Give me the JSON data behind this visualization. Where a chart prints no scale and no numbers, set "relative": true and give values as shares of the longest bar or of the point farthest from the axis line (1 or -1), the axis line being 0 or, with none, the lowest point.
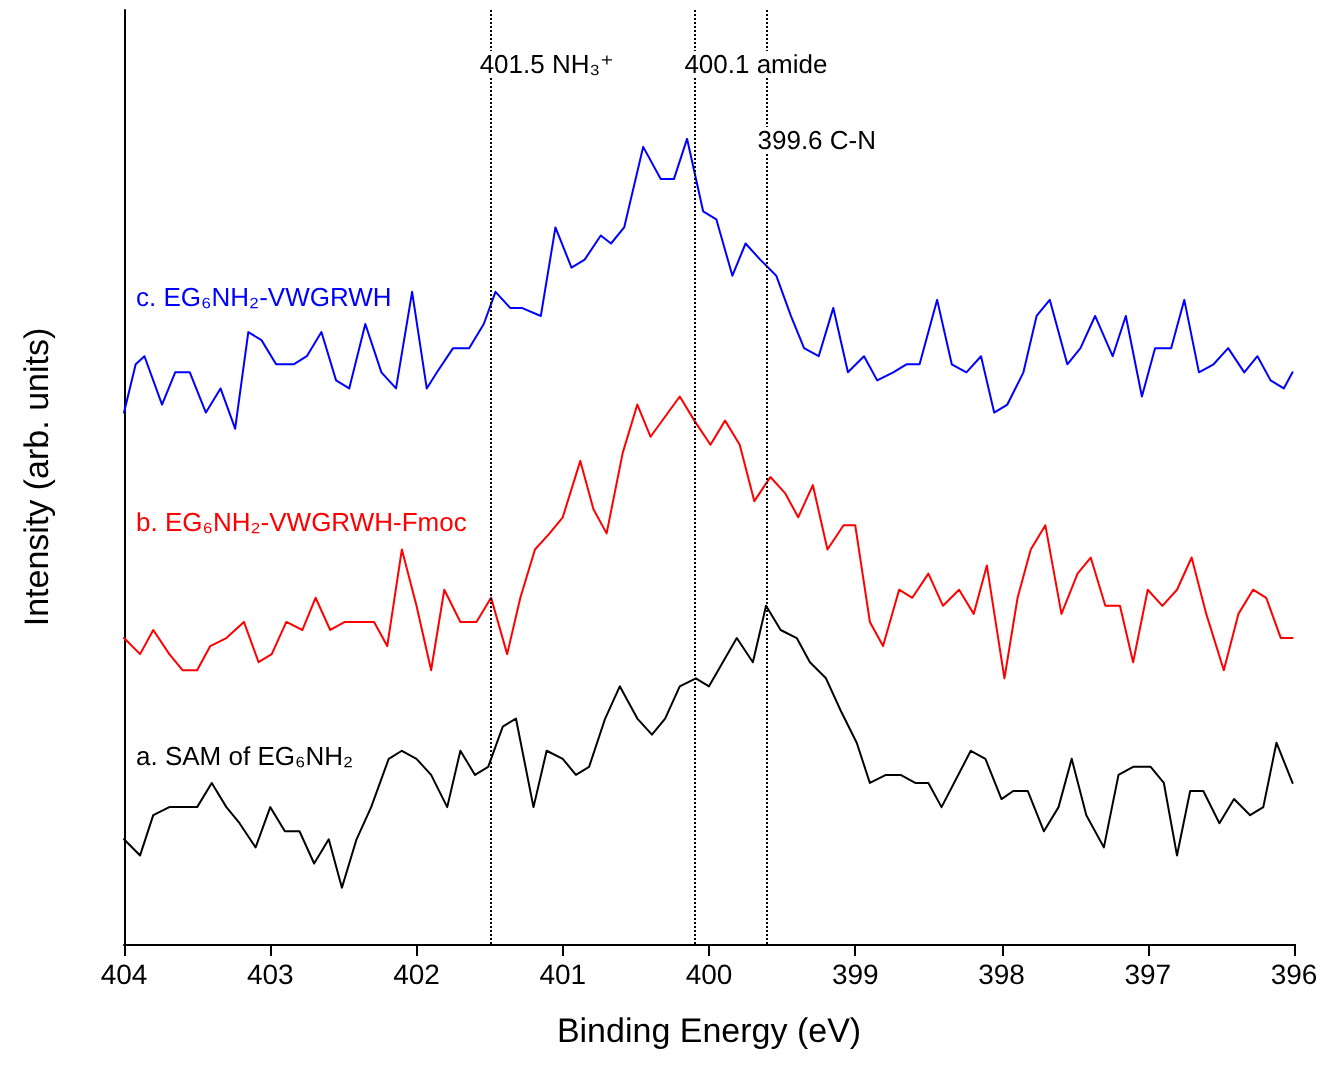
{
  "chart_data": {
    "type": "line",
    "relative": true,
    "xlabel": "Binding Energy (eV)",
    "ylabel": "Intensity (arb. units)",
    "xlim": [
      404,
      396
    ],
    "xticks": [
      404,
      403,
      402,
      401,
      400,
      399,
      398,
      397,
      396
    ],
    "grid": false,
    "legend": false,
    "marker": "none",
    "line_style": "solid",
    "series": [
      {
        "name": "c. EG₆NH₂-VWGRWH",
        "color": "#0000ff",
        "x": [
          404.0,
          403.92,
          403.86,
          403.74,
          403.65,
          403.55,
          403.44,
          403.34,
          403.24,
          403.15,
          403.06,
          402.96,
          402.84,
          402.75,
          402.65,
          402.55,
          402.46,
          402.35,
          402.24,
          402.14,
          402.03,
          401.93,
          401.86,
          401.75,
          401.64,
          401.54,
          401.46,
          401.36,
          401.28,
          401.15,
          401.05,
          400.94,
          400.85,
          400.74,
          400.67,
          400.58,
          400.45,
          400.33,
          400.24,
          400.15,
          400.04,
          399.95,
          399.84,
          399.75,
          399.65,
          399.54,
          399.44,
          399.35,
          399.25,
          399.15,
          399.05,
          398.94,
          398.85,
          398.74,
          398.65,
          398.56,
          398.44,
          398.34,
          398.24,
          398.14,
          398.05,
          397.96,
          397.85,
          397.76,
          397.67,
          397.55,
          397.46,
          397.36,
          397.24,
          397.15,
          397.04,
          396.95,
          396.84,
          396.75,
          396.65,
          396.55,
          396.45,
          396.34,
          396.25,
          396.16,
          396.07,
          396.01
        ],
        "values": [
          0.66,
          0.72,
          0.73,
          0.67,
          0.71,
          0.71,
          0.66,
          0.69,
          0.64,
          0.76,
          0.75,
          0.72,
          0.72,
          0.73,
          0.76,
          0.7,
          0.69,
          0.77,
          0.71,
          0.69,
          0.81,
          0.69,
          0.71,
          0.74,
          0.74,
          0.77,
          0.81,
          0.79,
          0.79,
          0.78,
          0.89,
          0.84,
          0.85,
          0.88,
          0.87,
          0.89,
          0.99,
          0.95,
          0.95,
          1.0,
          0.91,
          0.9,
          0.83,
          0.87,
          0.85,
          0.83,
          0.78,
          0.74,
          0.73,
          0.79,
          0.71,
          0.73,
          0.7,
          0.71,
          0.72,
          0.72,
          0.8,
          0.72,
          0.71,
          0.73,
          0.66,
          0.67,
          0.71,
          0.78,
          0.8,
          0.72,
          0.74,
          0.78,
          0.73,
          0.78,
          0.68,
          0.74,
          0.74,
          0.8,
          0.71,
          0.72,
          0.74,
          0.71,
          0.73,
          0.7,
          0.69,
          0.71
        ]
      },
      {
        "name": "b. EG₆NH₂-VWGRWH-Fmoc",
        "color": "#ff0000",
        "x": [
          404.0,
          403.89,
          403.8,
          403.69,
          403.6,
          403.5,
          403.41,
          403.3,
          403.18,
          403.08,
          402.99,
          402.89,
          402.78,
          402.69,
          402.59,
          402.49,
          402.29,
          402.2,
          402.1,
          402.0,
          401.9,
          401.81,
          401.7,
          401.59,
          401.49,
          401.38,
          401.29,
          401.19,
          401.09,
          401.0,
          400.88,
          400.79,
          400.7,
          400.59,
          400.49,
          400.4,
          400.2,
          400.1,
          399.99,
          399.89,
          399.79,
          399.69,
          399.58,
          399.48,
          399.39,
          399.29,
          399.19,
          399.08,
          399.0,
          398.9,
          398.81,
          398.7,
          398.61,
          398.5,
          398.4,
          398.29,
          398.19,
          398.1,
          397.98,
          397.89,
          397.8,
          397.7,
          397.59,
          397.48,
          397.39,
          397.29,
          397.19,
          397.1,
          397.0,
          396.9,
          396.8,
          396.7,
          396.6,
          396.48,
          396.38,
          396.28,
          396.19,
          396.09,
          396.01
        ],
        "values": [
          0.38,
          0.36,
          0.39,
          0.36,
          0.34,
          0.34,
          0.37,
          0.38,
          0.4,
          0.35,
          0.36,
          0.4,
          0.39,
          0.43,
          0.39,
          0.4,
          0.4,
          0.37,
          0.49,
          0.42,
          0.34,
          0.44,
          0.4,
          0.4,
          0.43,
          0.36,
          0.43,
          0.49,
          0.51,
          0.53,
          0.6,
          0.54,
          0.51,
          0.61,
          0.67,
          0.63,
          0.68,
          0.65,
          0.62,
          0.65,
          0.62,
          0.55,
          0.58,
          0.56,
          0.53,
          0.57,
          0.49,
          0.52,
          0.52,
          0.4,
          0.37,
          0.44,
          0.43,
          0.46,
          0.42,
          0.44,
          0.41,
          0.47,
          0.33,
          0.43,
          0.49,
          0.52,
          0.41,
          0.46,
          0.48,
          0.42,
          0.42,
          0.35,
          0.44,
          0.42,
          0.44,
          0.48,
          0.41,
          0.34,
          0.41,
          0.44,
          0.43,
          0.38,
          0.38
        ]
      },
      {
        "name": "a. SAM of EG₆NH₂",
        "color": "#000000",
        "x": [
          404.0,
          403.89,
          403.8,
          403.69,
          403.6,
          403.5,
          403.4,
          403.3,
          403.21,
          403.1,
          403.0,
          402.9,
          402.8,
          402.7,
          402.6,
          402.51,
          402.41,
          402.31,
          402.19,
          402.1,
          402.0,
          401.9,
          401.79,
          401.7,
          401.6,
          401.51,
          401.41,
          401.32,
          401.2,
          401.11,
          401.0,
          400.91,
          400.82,
          400.71,
          400.61,
          400.49,
          400.39,
          400.3,
          400.2,
          400.09,
          400.0,
          399.81,
          399.7,
          399.61,
          399.51,
          399.4,
          399.31,
          399.2,
          399.1,
          398.99,
          398.9,
          398.79,
          398.69,
          398.59,
          398.5,
          398.41,
          398.21,
          398.11,
          398.0,
          397.92,
          397.82,
          397.71,
          397.61,
          397.52,
          397.42,
          397.3,
          397.2,
          397.1,
          396.98,
          396.89,
          396.8,
          396.71,
          396.62,
          396.51,
          396.41,
          396.3,
          396.21,
          396.12,
          396.01
        ],
        "values": [
          0.13,
          0.11,
          0.16,
          0.17,
          0.17,
          0.17,
          0.2,
          0.17,
          0.15,
          0.12,
          0.17,
          0.14,
          0.14,
          0.1,
          0.13,
          0.07,
          0.13,
          0.17,
          0.23,
          0.24,
          0.23,
          0.21,
          0.17,
          0.24,
          0.21,
          0.22,
          0.27,
          0.28,
          0.17,
          0.24,
          0.23,
          0.21,
          0.22,
          0.28,
          0.32,
          0.28,
          0.26,
          0.28,
          0.32,
          0.33,
          0.32,
          0.38,
          0.35,
          0.42,
          0.39,
          0.38,
          0.35,
          0.33,
          0.29,
          0.25,
          0.2,
          0.21,
          0.21,
          0.2,
          0.2,
          0.17,
          0.24,
          0.23,
          0.18,
          0.19,
          0.19,
          0.14,
          0.17,
          0.23,
          0.16,
          0.12,
          0.21,
          0.22,
          0.22,
          0.2,
          0.11,
          0.19,
          0.19,
          0.15,
          0.18,
          0.16,
          0.17,
          0.25,
          0.2
        ]
      }
    ],
    "ref_lines": [
      {
        "axis": "x",
        "value": 401.5,
        "color": "#000000",
        "line_style": "dotted",
        "label": "401.5 NH₃⁺"
      },
      {
        "axis": "x",
        "value": 400.1,
        "color": "#000000",
        "line_style": "dotted",
        "label": "400.1 amide"
      },
      {
        "axis": "x",
        "value": 399.6,
        "color": "#000000",
        "line_style": "dotted",
        "label": "399.6 C-N"
      }
    ]
  }
}
